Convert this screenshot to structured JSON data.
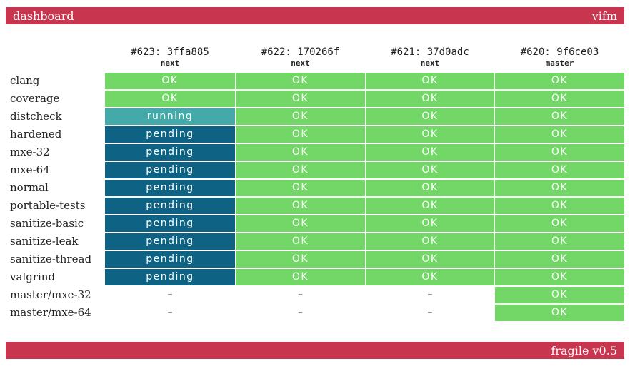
{
  "header": {
    "title": "dashboard",
    "project": "vifm"
  },
  "footer": {
    "version": "fragile v0.5"
  },
  "columns": [
    {
      "commit": "#623: 3ffa885",
      "branch": "next"
    },
    {
      "commit": "#622: 170266f",
      "branch": "next"
    },
    {
      "commit": "#621: 37d0adc",
      "branch": "next"
    },
    {
      "commit": "#620: 9f6ce03",
      "branch": "master"
    }
  ],
  "rows": [
    {
      "name": "clang",
      "cells": [
        "OK",
        "OK",
        "OK",
        "OK"
      ]
    },
    {
      "name": "coverage",
      "cells": [
        "OK",
        "OK",
        "OK",
        "OK"
      ]
    },
    {
      "name": "distcheck",
      "cells": [
        "running",
        "OK",
        "OK",
        "OK"
      ]
    },
    {
      "name": "hardened",
      "cells": [
        "pending",
        "OK",
        "OK",
        "OK"
      ]
    },
    {
      "name": "mxe-32",
      "cells": [
        "pending",
        "OK",
        "OK",
        "OK"
      ]
    },
    {
      "name": "mxe-64",
      "cells": [
        "pending",
        "OK",
        "OK",
        "OK"
      ]
    },
    {
      "name": "normal",
      "cells": [
        "pending",
        "OK",
        "OK",
        "OK"
      ]
    },
    {
      "name": "portable-tests",
      "cells": [
        "pending",
        "OK",
        "OK",
        "OK"
      ]
    },
    {
      "name": "sanitize-basic",
      "cells": [
        "pending",
        "OK",
        "OK",
        "OK"
      ]
    },
    {
      "name": "sanitize-leak",
      "cells": [
        "pending",
        "OK",
        "OK",
        "OK"
      ]
    },
    {
      "name": "sanitize-thread",
      "cells": [
        "pending",
        "OK",
        "OK",
        "OK"
      ]
    },
    {
      "name": "valgrind",
      "cells": [
        "pending",
        "OK",
        "OK",
        "OK"
      ]
    },
    {
      "name": "master/mxe-32",
      "cells": [
        "–",
        "–",
        "–",
        "OK"
      ]
    },
    {
      "name": "master/mxe-64",
      "cells": [
        "–",
        "–",
        "–",
        "OK"
      ]
    }
  ],
  "colors": {
    "bar": "#c8354f",
    "ok": "#72d767",
    "running": "#44aaa9",
    "pending": "#0e6283"
  }
}
